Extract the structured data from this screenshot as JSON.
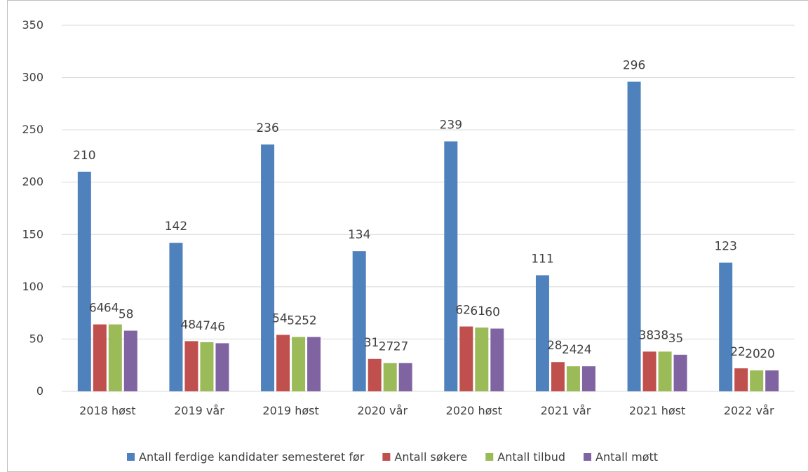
{
  "chart_data": {
    "type": "bar",
    "title": "",
    "xlabel": "",
    "ylabel": "",
    "ylim": [
      0,
      350
    ],
    "yticks": [
      0,
      50,
      100,
      150,
      200,
      250,
      300,
      350
    ],
    "grid": true,
    "legend_position": "bottom-right",
    "categories": [
      "2018 høst",
      "2019 vår",
      "2019 høst",
      "2020 vår",
      "2020 høst",
      "2021 vår",
      "2021 høst",
      "2022 vår"
    ],
    "series": [
      {
        "name": "Antall ferdige kandidater semesteret før",
        "color": "#4f81bd",
        "values": [
          210,
          142,
          236,
          134,
          239,
          111,
          296,
          123
        ]
      },
      {
        "name": "Antall søkere",
        "color": "#c0504d",
        "values": [
          64,
          48,
          54,
          31,
          62,
          28,
          38,
          22
        ]
      },
      {
        "name": "Antall tilbud",
        "color": "#9bbb59",
        "values": [
          64,
          47,
          52,
          27,
          61,
          24,
          38,
          20
        ]
      },
      {
        "name": "Antall møtt",
        "color": "#8064a2",
        "values": [
          58,
          46,
          52,
          27,
          60,
          24,
          35,
          20
        ]
      }
    ]
  }
}
